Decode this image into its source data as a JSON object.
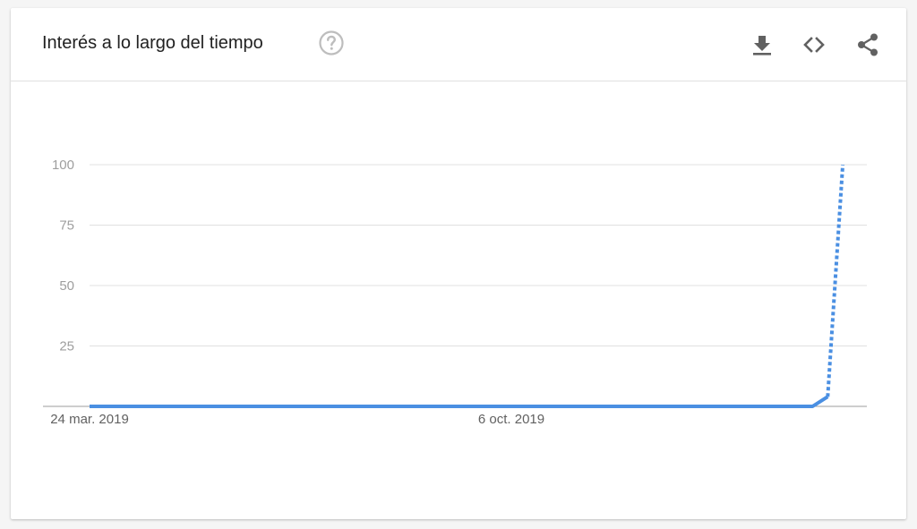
{
  "header": {
    "title": "Interés a lo largo del tiempo",
    "help_icon": "help-circle-icon",
    "actions": [
      {
        "name": "download",
        "icon": "download-icon"
      },
      {
        "name": "embed",
        "icon": "code-icon"
      },
      {
        "name": "share",
        "icon": "share-icon"
      }
    ]
  },
  "colors": {
    "series": "#4a8fe2",
    "grid": "#e0e0e0",
    "axis": "#9e9e9e"
  },
  "chart_data": {
    "type": "line",
    "title": "Interés a lo largo del tiempo",
    "xlabel": "",
    "ylabel": "",
    "ylim": [
      0,
      100
    ],
    "yticks": [
      100,
      75,
      50,
      25
    ],
    "xticks": [
      {
        "label": "24 mar. 2019",
        "date": "2019-03-24"
      },
      {
        "label": "6 oct. 2019",
        "date": "2019-10-06"
      }
    ],
    "grid": true,
    "legend": "none",
    "series": [
      {
        "style": "solid",
        "points": [
          {
            "date": "2019-03-24",
            "value": 0
          },
          {
            "date": "2020-02-23",
            "value": 0
          },
          {
            "date": "2020-03-01",
            "value": 4
          }
        ]
      },
      {
        "style": "dashed",
        "points": [
          {
            "date": "2020-03-01",
            "value": 4
          },
          {
            "date": "2020-03-08",
            "value": 100
          }
        ]
      }
    ]
  }
}
